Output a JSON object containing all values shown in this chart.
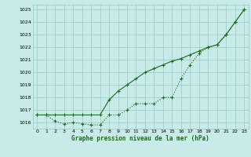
{
  "xlabel": "Graphe pression niveau de la mer (hPa)",
  "x": [
    0,
    1,
    2,
    3,
    4,
    5,
    6,
    7,
    8,
    9,
    10,
    11,
    12,
    13,
    14,
    15,
    16,
    17,
    18,
    19,
    20,
    21,
    22,
    23
  ],
  "line1": [
    1016.6,
    1016.6,
    1016.1,
    1015.9,
    1016.0,
    1015.9,
    1015.8,
    1015.8,
    1016.6,
    1016.6,
    1017.0,
    1017.5,
    1017.5,
    1017.5,
    1018.0,
    1018.0,
    1019.5,
    1020.6,
    1021.5,
    1022.0,
    1022.2,
    1023.0,
    1024.0,
    1025.0
  ],
  "line2": [
    1016.6,
    1016.6,
    1016.6,
    1016.6,
    1016.6,
    1016.6,
    1016.6,
    1016.6,
    1017.8,
    1018.5,
    1019.0,
    1019.5,
    1020.0,
    1020.3,
    1020.6,
    1020.9,
    1021.1,
    1021.4,
    1021.7,
    1022.0,
    1022.2,
    1023.0,
    1024.0,
    1025.0
  ],
  "line_color": "#1a6b1a",
  "bg_color": "#c8eae8",
  "grid_color": "#98c8c4",
  "ylim_min": 1015.5,
  "ylim_max": 1025.4,
  "yticks": [
    1016,
    1017,
    1018,
    1019,
    1020,
    1021,
    1022,
    1023,
    1024,
    1025
  ],
  "xticks": [
    0,
    1,
    2,
    3,
    4,
    5,
    6,
    7,
    8,
    9,
    10,
    11,
    12,
    13,
    14,
    15,
    16,
    17,
    18,
    19,
    20,
    21,
    22,
    23
  ],
  "markersize": 3.5,
  "linewidth": 0.8
}
